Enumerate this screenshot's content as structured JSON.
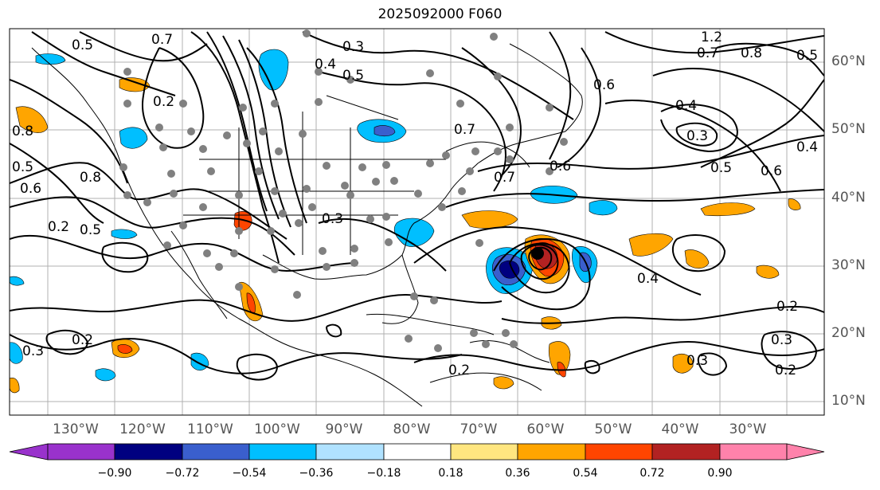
{
  "title": "2025092000 F060",
  "lat_labels": [
    "60°N",
    "50°N",
    "40°N",
    "30°N",
    "20°N",
    "10°N"
  ],
  "lon_labels": [
    "130°W",
    "120°W",
    "110°W",
    "100°W",
    "90°W",
    "80°W",
    "70°W",
    "60°W",
    "50°W",
    "40°W",
    "30°W"
  ],
  "colorbar": {
    "ticks": [
      "−0.90",
      "−0.72",
      "−0.54",
      "−0.36",
      "−0.18",
      "0.18",
      "0.36",
      "0.54",
      "0.72",
      "0.90"
    ],
    "colors": [
      "#9932cc",
      "#000080",
      "#3a5fcd",
      "#00bfff",
      "#b0e2ff",
      "#ffffff",
      "#ffe680",
      "#ffa500",
      "#ff4500",
      "#b22222",
      "#ff82ab"
    ]
  },
  "contour_labels": [
    "0.7",
    "0.5",
    "0.3",
    "0.4",
    "0.5",
    "0.2",
    "0.7",
    "0.6",
    "0.7",
    "0.8",
    "0.6",
    "0.4",
    "0.3",
    "0.5",
    "0.6",
    "0.4",
    "0.5",
    "0.8",
    "0.6",
    "0.5",
    "0.3",
    "0.4",
    "0.2",
    "0.3",
    "0.2",
    "0.3",
    "0.3",
    "0.2",
    "0.2",
    "0.2",
    "1.2",
    "0.7",
    "0.8",
    "0.5"
  ],
  "field_colors": {
    "contour": "#000000",
    "coast": "#000000",
    "grid": "#b0b0b0",
    "station": "#808080"
  }
}
